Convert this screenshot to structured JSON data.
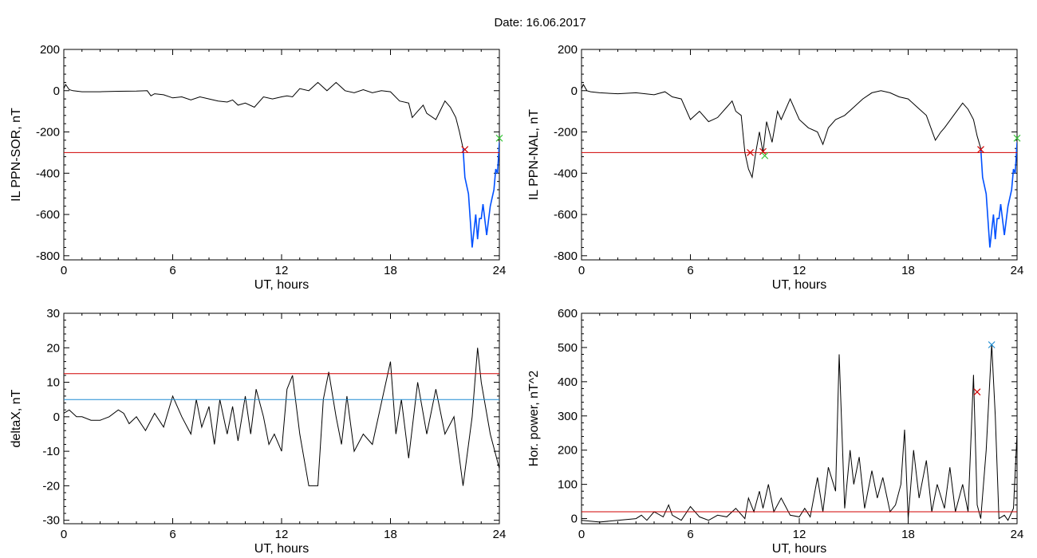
{
  "title": "Date:  16.06.2017",
  "chart_data": [
    {
      "id": "sor",
      "type": "line",
      "ylabel": "IL PPN-SOR, nT",
      "xlabel": "UT, hours",
      "xlim": [
        0,
        24
      ],
      "ylim": [
        -820,
        200
      ],
      "xticks": [
        0,
        6,
        12,
        18,
        24
      ],
      "yticks": [
        200,
        0,
        -200,
        -400,
        -600,
        -800
      ],
      "hlines": [
        {
          "y": -300,
          "color": "#d00000"
        }
      ],
      "series": [
        {
          "color": "#000000",
          "x": [
            0,
            0.1,
            0.3,
            0.5,
            1,
            2,
            3,
            4,
            4.6,
            4.8,
            5,
            5.5,
            6,
            6.5,
            7,
            7.5,
            8,
            8.5,
            9,
            9.3,
            9.6,
            10,
            10.5,
            11,
            11.5,
            12,
            12.3,
            12.6,
            13,
            13.5,
            14,
            14.5,
            15,
            15.5,
            16,
            16.5,
            17,
            17.5,
            18,
            18.5,
            19,
            19.2,
            19.5,
            19.8,
            20,
            20.5,
            21,
            21.3,
            21.6,
            21.8,
            22
          ],
          "y": [
            10,
            30,
            5,
            0,
            -5,
            -5,
            -3,
            -2,
            0,
            -25,
            -15,
            -20,
            -35,
            -30,
            -45,
            -30,
            -40,
            -50,
            -55,
            -45,
            -70,
            -60,
            -80,
            -30,
            -40,
            -30,
            -25,
            -30,
            10,
            0,
            40,
            0,
            40,
            0,
            -10,
            5,
            -10,
            0,
            -5,
            -50,
            -60,
            -130,
            -100,
            -70,
            -110,
            -140,
            -50,
            -80,
            -130,
            -200,
            -280
          ]
        },
        {
          "color": "#0050ff",
          "x": [
            22,
            22.1,
            22.3,
            22.5,
            22.7,
            22.8,
            22.9,
            23,
            23.1,
            23.3,
            23.5,
            23.7,
            23.8,
            23.9,
            24
          ],
          "y": [
            -280,
            -420,
            -500,
            -760,
            -600,
            -720,
            -620,
            -620,
            -550,
            -700,
            -560,
            -480,
            -380,
            -400,
            -250
          ]
        }
      ],
      "markers": [
        {
          "x": 22.1,
          "y": -285,
          "color": "#d00000"
        },
        {
          "x": 24,
          "y": -230,
          "color": "#3cc83c"
        }
      ]
    },
    {
      "id": "nal",
      "type": "line",
      "ylabel": "IL PPN-NAL, nT",
      "xlabel": "UT, hours",
      "xlim": [
        0,
        24
      ],
      "ylim": [
        -820,
        200
      ],
      "xticks": [
        0,
        6,
        12,
        18,
        24
      ],
      "yticks": [
        200,
        0,
        -200,
        -400,
        -600,
        -800
      ],
      "hlines": [
        {
          "y": -300,
          "color": "#d00000"
        }
      ],
      "series": [
        {
          "color": "#000000",
          "x": [
            0,
            0.1,
            0.3,
            0.5,
            1,
            2,
            3,
            4,
            4.6,
            5,
            5.5,
            6,
            6.5,
            7,
            7.5,
            8,
            8.3,
            8.5,
            8.8,
            9,
            9.2,
            9.4,
            9.6,
            9.8,
            10,
            10.2,
            10.5,
            10.8,
            11,
            11.5,
            12,
            12.5,
            13,
            13.3,
            13.6,
            14,
            14.5,
            15,
            15.5,
            16,
            16.5,
            17,
            17.5,
            18,
            18.5,
            19,
            19.5,
            19.8,
            20,
            20.5,
            21,
            21.3,
            21.6,
            21.8,
            22
          ],
          "y": [
            10,
            30,
            0,
            -5,
            -10,
            -15,
            -10,
            -20,
            -5,
            -30,
            -40,
            -140,
            -100,
            -150,
            -130,
            -80,
            -50,
            -100,
            -120,
            -300,
            -380,
            -420,
            -300,
            -200,
            -300,
            -150,
            -250,
            -100,
            -140,
            -40,
            -140,
            -180,
            -200,
            -260,
            -180,
            -140,
            -120,
            -80,
            -40,
            -10,
            0,
            -10,
            -30,
            -40,
            -80,
            -120,
            -240,
            -200,
            -180,
            -120,
            -60,
            -90,
            -140,
            -220,
            -280
          ]
        },
        {
          "color": "#0050ff",
          "x": [
            22,
            22.1,
            22.3,
            22.5,
            22.7,
            22.8,
            22.9,
            23,
            23.1,
            23.3,
            23.5,
            23.7,
            23.8,
            23.9,
            24
          ],
          "y": [
            -280,
            -420,
            -500,
            -760,
            -600,
            -720,
            -620,
            -620,
            -550,
            -700,
            -560,
            -480,
            -380,
            -400,
            -250
          ]
        }
      ],
      "markers": [
        {
          "x": 9.3,
          "y": -300,
          "color": "#d00000"
        },
        {
          "x": 10.0,
          "y": -295,
          "color": "#d00000"
        },
        {
          "x": 10.1,
          "y": -315,
          "color": "#3cc83c"
        },
        {
          "x": 22.0,
          "y": -285,
          "color": "#d00000"
        },
        {
          "x": 24,
          "y": -230,
          "color": "#3cc83c"
        }
      ]
    },
    {
      "id": "deltax",
      "type": "line",
      "ylabel": "deltaX, nT",
      "xlabel": "UT, hours",
      "xlim": [
        0,
        24
      ],
      "ylim": [
        -31,
        30
      ],
      "xticks": [
        0,
        6,
        12,
        18,
        24
      ],
      "yticks": [
        30,
        20,
        10,
        0,
        -10,
        -20,
        -30
      ],
      "hlines": [
        {
          "y": 12.5,
          "color": "#d00000"
        },
        {
          "y": 5,
          "color": "#1e8cd2"
        }
      ],
      "series": [
        {
          "color": "#000000",
          "x": [
            0,
            0.3,
            0.7,
            1,
            1.5,
            2,
            2.5,
            3,
            3.3,
            3.6,
            4,
            4.5,
            5,
            5.5,
            6,
            6.5,
            7,
            7.3,
            7.6,
            8,
            8.3,
            8.6,
            9,
            9.3,
            9.6,
            10,
            10.3,
            10.6,
            11,
            11.3,
            11.6,
            12,
            12.3,
            12.6,
            13,
            13.5,
            14,
            14.3,
            14.6,
            15,
            15.3,
            15.6,
            16,
            16.5,
            17,
            17.5,
            18,
            18.3,
            18.6,
            19,
            19.5,
            20,
            20.5,
            21,
            21.5,
            22,
            22.5,
            22.8,
            23,
            23.5,
            24
          ],
          "y": [
            1,
            2,
            0,
            0,
            -1,
            -1,
            0,
            2,
            1,
            -2,
            0,
            -4,
            1,
            -3,
            6,
            0,
            -5,
            5,
            -3,
            3,
            -8,
            5,
            -5,
            3,
            -7,
            6,
            -5,
            8,
            0,
            -8,
            -5,
            -10,
            8,
            12,
            -5,
            -20,
            -20,
            5,
            13,
            0,
            -8,
            6,
            -10,
            -5,
            -8,
            4,
            16,
            -5,
            5,
            -12,
            10,
            -5,
            8,
            -5,
            0,
            -20,
            0,
            20,
            10,
            -5,
            -15
          ]
        }
      ],
      "markers": []
    },
    {
      "id": "hpower",
      "type": "line",
      "ylabel": "Hor. power, nT^2",
      "xlabel": "UT, hours",
      "xlim": [
        0,
        24
      ],
      "ylim": [
        -15,
        600
      ],
      "xticks": [
        0,
        6,
        12,
        18,
        24
      ],
      "yticks": [
        600,
        500,
        400,
        300,
        200,
        100,
        0
      ],
      "hlines": [
        {
          "y": 20,
          "color": "#d00000"
        }
      ],
      "series": [
        {
          "color": "#000000",
          "x": [
            0,
            1,
            2,
            3,
            3.3,
            3.6,
            4,
            4.5,
            4.8,
            5,
            5.5,
            6,
            6.5,
            7,
            7.5,
            8,
            8.5,
            9,
            9.2,
            9.5,
            9.8,
            10,
            10.3,
            10.6,
            11,
            11.5,
            12,
            12.3,
            12.6,
            13,
            13.3,
            13.6,
            14,
            14.2,
            14.5,
            14.8,
            15,
            15.3,
            15.6,
            16,
            16.3,
            16.6,
            17,
            17.3,
            17.6,
            17.8,
            18,
            18.3,
            18.6,
            19,
            19.3,
            19.6,
            20,
            20.3,
            20.6,
            21,
            21.3,
            21.6,
            21.8,
            22,
            22.3,
            22.6,
            22.8,
            23,
            23.3,
            23.5,
            23.8,
            24
          ],
          "y": [
            -5,
            -10,
            -5,
            0,
            10,
            -5,
            20,
            5,
            40,
            10,
            -5,
            35,
            5,
            -5,
            10,
            5,
            30,
            0,
            60,
            20,
            80,
            30,
            100,
            20,
            60,
            10,
            5,
            30,
            5,
            120,
            20,
            150,
            80,
            480,
            30,
            200,
            100,
            180,
            30,
            140,
            60,
            120,
            20,
            40,
            100,
            260,
            0,
            200,
            60,
            170,
            20,
            100,
            30,
            150,
            20,
            100,
            20,
            420,
            40,
            0,
            200,
            510,
            300,
            0,
            10,
            -5,
            30,
            250
          ]
        }
      ],
      "markers": [
        {
          "x": 21.8,
          "y": 370,
          "color": "#d00000"
        },
        {
          "x": 22.6,
          "y": 508,
          "color": "#1e8cd2"
        }
      ]
    }
  ]
}
